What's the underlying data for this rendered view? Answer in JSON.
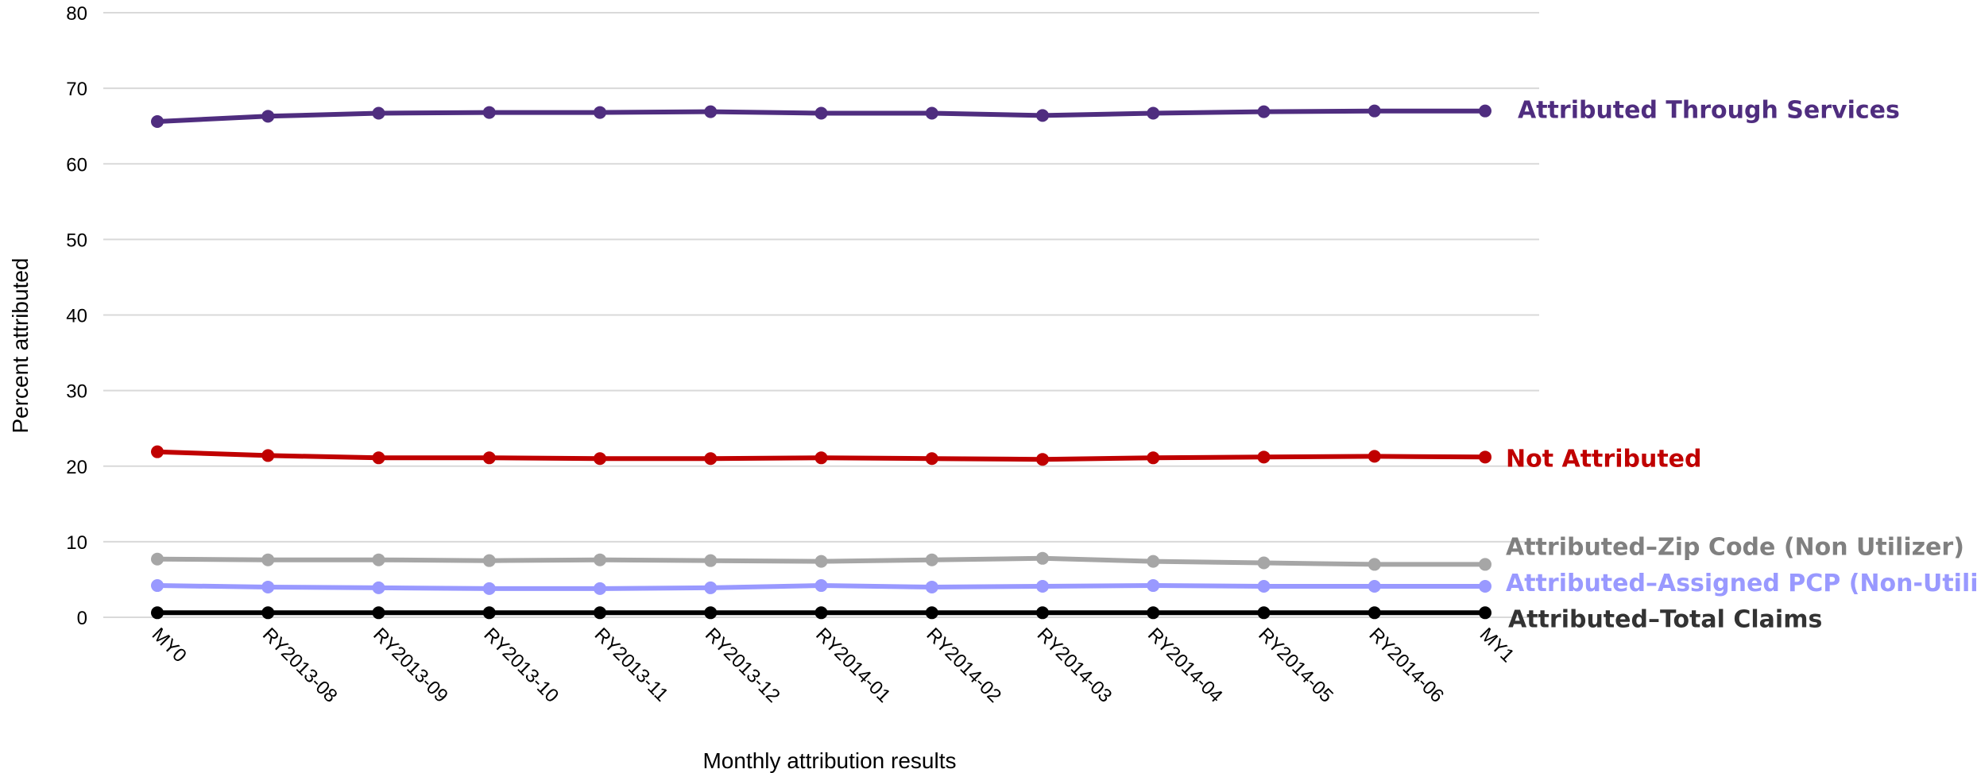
{
  "chart_data": {
    "type": "line",
    "title": "",
    "xlabel": "Monthly attribution results",
    "ylabel": "Percent attributed",
    "ylim": [
      0,
      80
    ],
    "yticks": [
      0,
      10,
      20,
      30,
      40,
      50,
      60,
      70,
      80
    ],
    "grid": true,
    "legend": "direct labels at right end of lines",
    "categories": [
      "MY0",
      "RY2013-08",
      "RY2013-09",
      "RY2013-10",
      "RY2013-11",
      "RY2013-12",
      "RY2014-01",
      "RY2014-02",
      "RY2014-03",
      "RY2014-04",
      "RY2014-05",
      "RY2014-06",
      "MY1"
    ],
    "series": [
      {
        "name": "Attributed Through Services",
        "color": "#4f2d7f",
        "label_color": "#4f2d7f",
        "values": [
          65.6,
          66.3,
          66.7,
          66.8,
          66.8,
          66.9,
          66.7,
          66.7,
          66.4,
          66.7,
          66.9,
          67.0,
          67.0
        ]
      },
      {
        "name": "Not Attributed",
        "color": "#c00000",
        "label_color": "#c00000",
        "values": [
          21.9,
          21.4,
          21.1,
          21.1,
          21.0,
          21.0,
          21.1,
          21.0,
          20.9,
          21.1,
          21.2,
          21.3,
          21.2
        ]
      },
      {
        "name": "Attributed–Zip Code (Non Utilizer)",
        "color": "#a6a6a6",
        "label_color": "#808080",
        "values": [
          7.7,
          7.6,
          7.6,
          7.5,
          7.6,
          7.5,
          7.4,
          7.6,
          7.8,
          7.4,
          7.2,
          7.0,
          7.0
        ]
      },
      {
        "name": "Attributed–Assigned PCP (Non-Utilizer)",
        "color": "#9999ff",
        "label_color": "#9999ff",
        "values": [
          4.2,
          4.0,
          3.9,
          3.8,
          3.8,
          3.9,
          4.2,
          4.0,
          4.1,
          4.2,
          4.1,
          4.1,
          4.1
        ]
      },
      {
        "name": "Attributed–Total Claims",
        "color": "#000000",
        "label_color": "#333333",
        "values": [
          0.6,
          0.6,
          0.6,
          0.6,
          0.6,
          0.6,
          0.6,
          0.6,
          0.6,
          0.6,
          0.6,
          0.6,
          0.6
        ]
      }
    ]
  }
}
